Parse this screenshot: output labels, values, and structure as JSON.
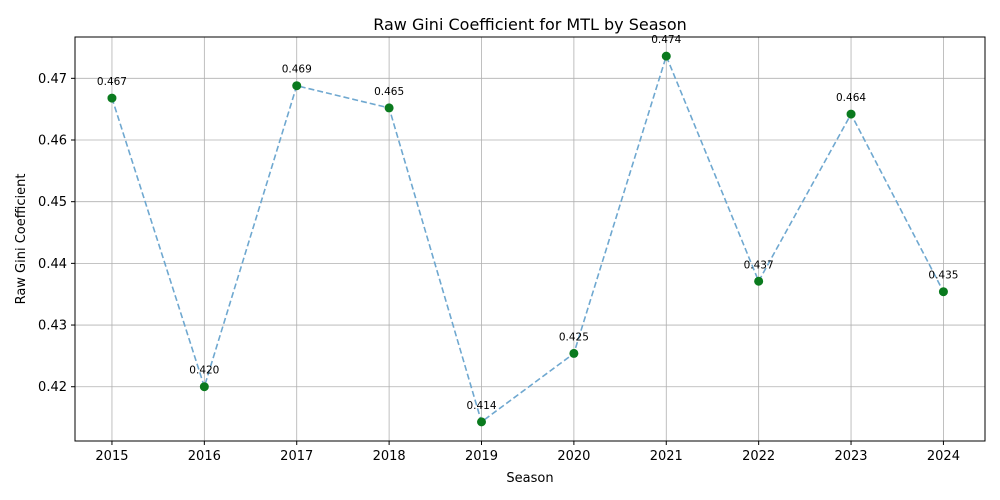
{
  "chart_data": {
    "type": "line",
    "title": "Raw Gini Coefficient for MTL by Season",
    "xlabel": "Season",
    "ylabel": "Raw Gini Coefficient",
    "x": [
      2015,
      2016,
      2017,
      2018,
      2019,
      2020,
      2021,
      2022,
      2023,
      2024
    ],
    "series": [
      {
        "values": [
          0.4668,
          0.42,
          0.4688,
          0.4652,
          0.4143,
          0.4254,
          0.4736,
          0.4371,
          0.4642,
          0.4354
        ],
        "labels": [
          "0.467",
          "0.420",
          "0.469",
          "0.465",
          "0.414",
          "0.425",
          "0.474",
          "0.437",
          "0.464",
          "0.435"
        ]
      }
    ],
    "yticks": [
      "0.42",
      "0.43",
      "0.44",
      "0.45",
      "0.46",
      "0.47"
    ],
    "ylim": [
      0.4112,
      0.4767
    ],
    "xlim": [
      2014.6,
      2024.45
    ],
    "grid": true,
    "line_style": "dashed",
    "line_color": "#6fa8d0",
    "marker_color": "#0a7a1e"
  }
}
